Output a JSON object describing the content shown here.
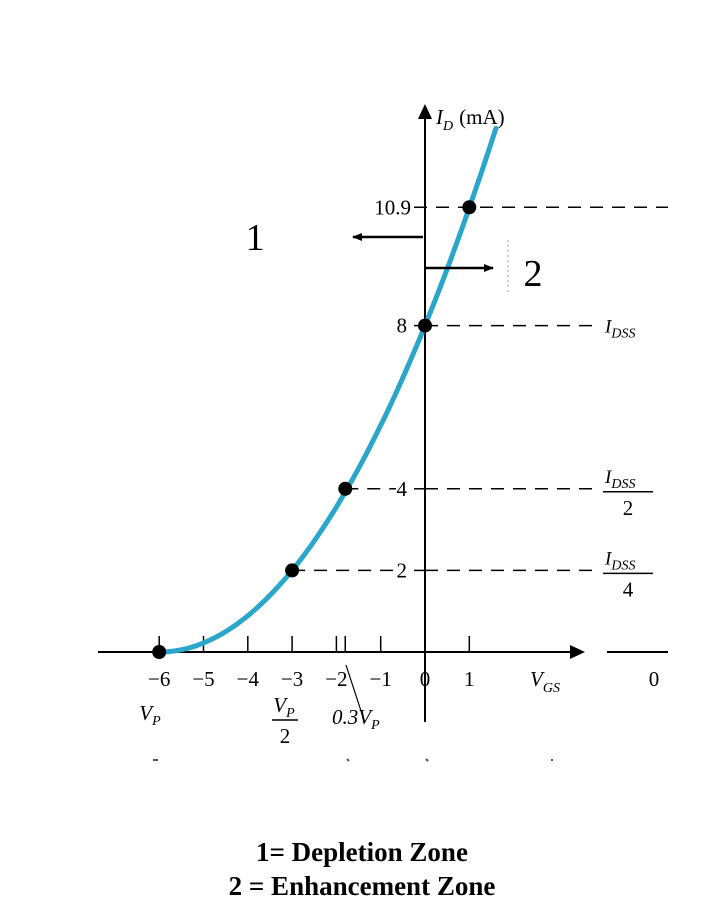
{
  "chart_data": {
    "type": "line",
    "title": "",
    "xlabel": "V",
    "xlabel_sub": "GS",
    "ylabel": "I",
    "ylabel_sub": "D",
    "ylabel_unit": "(mA)",
    "xlim": [
      -6.2,
      3.5
    ],
    "ylim": [
      0,
      12.3
    ],
    "x_ticks": [
      -6,
      -5,
      -4,
      -3,
      -2,
      -1,
      0,
      1
    ],
    "x_tick_labels": [
      "−6",
      "−5",
      "−4",
      "−3",
      "−2",
      "−1",
      "0",
      "1"
    ],
    "extra_x_tick": -1.8,
    "y_tick_values": [
      2,
      4,
      8,
      10.9
    ],
    "y_tick_labels": [
      "2",
      "4",
      "8",
      "10.9"
    ],
    "series": [
      {
        "color": "#2ba6cb",
        "equation": "I_D = 8 (1 - V_GS / -6)^2",
        "x_range": [
          -6,
          1.6
        ]
      }
    ],
    "points": [
      {
        "x": -6,
        "y": 0
      },
      {
        "x": -3,
        "y": 2
      },
      {
        "x": -1.8,
        "y": 4
      },
      {
        "x": 0,
        "y": 8
      },
      {
        "x": 1,
        "y": 10.9
      }
    ],
    "reference_lines": [
      {
        "y": 10.9,
        "label": ""
      },
      {
        "y": 8,
        "label": "I",
        "sub": "DSS",
        "denominator": ""
      },
      {
        "y": 4,
        "label": "I",
        "sub": "DSS",
        "denominator": "2"
      },
      {
        "y": 2,
        "label": "I",
        "sub": "DSS",
        "denominator": "4"
      }
    ],
    "x_annotations": {
      "vp": {
        "main": "V",
        "sub": "P"
      },
      "vp_half": {
        "main": "V",
        "sub": "P",
        "denominator": "2"
      },
      "vp_03": {
        "prefix": "0.3V",
        "sub": "P"
      }
    },
    "zones": {
      "left": "1",
      "right": "2"
    },
    "partial_axis_right_label": "0",
    "colors": {
      "curve": "#2ba6cb",
      "axis": "#000000",
      "dashes": "#000000"
    }
  },
  "caption": {
    "line1": "1= Depletion Zone",
    "line2": "2 = Enhancement Zone"
  }
}
